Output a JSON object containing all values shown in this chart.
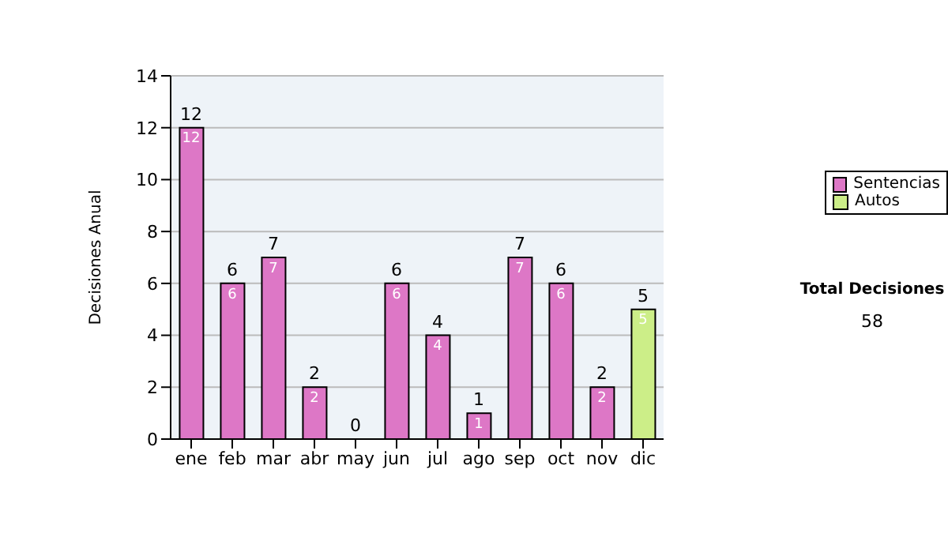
{
  "chart_data": {
    "type": "bar",
    "stacked": true,
    "ylabel": "Decisiones Anual",
    "categories": [
      "ene",
      "feb",
      "mar",
      "abr",
      "may",
      "jun",
      "jul",
      "ago",
      "sep",
      "oct",
      "nov",
      "dic"
    ],
    "series": [
      {
        "name": "Sentencias",
        "color": "#dd77c6",
        "values": [
          12,
          6,
          7,
          2,
          0,
          6,
          4,
          1,
          7,
          6,
          2,
          null
        ],
        "value_labels": [
          "12",
          "6",
          "7",
          "2",
          null,
          "6",
          "4",
          "1",
          "7",
          "6",
          "2",
          null
        ]
      },
      {
        "name": "Autos",
        "color": "#ccee88",
        "values": [
          null,
          null,
          null,
          null,
          null,
          null,
          null,
          null,
          null,
          null,
          null,
          5
        ],
        "value_labels": [
          null,
          null,
          null,
          null,
          null,
          null,
          null,
          null,
          null,
          null,
          null,
          "5"
        ]
      }
    ],
    "totals": [
      "12",
      "6",
      "7",
      "2",
      "0",
      "6",
      "4",
      "1",
      "7",
      "6",
      "2",
      "5"
    ],
    "ylim": [
      0,
      14
    ],
    "yticks": [
      0,
      2,
      4,
      6,
      8,
      10,
      12,
      14
    ],
    "grid": "y",
    "legend": "right",
    "annotations": [
      "Total Decisiones",
      "58"
    ]
  }
}
